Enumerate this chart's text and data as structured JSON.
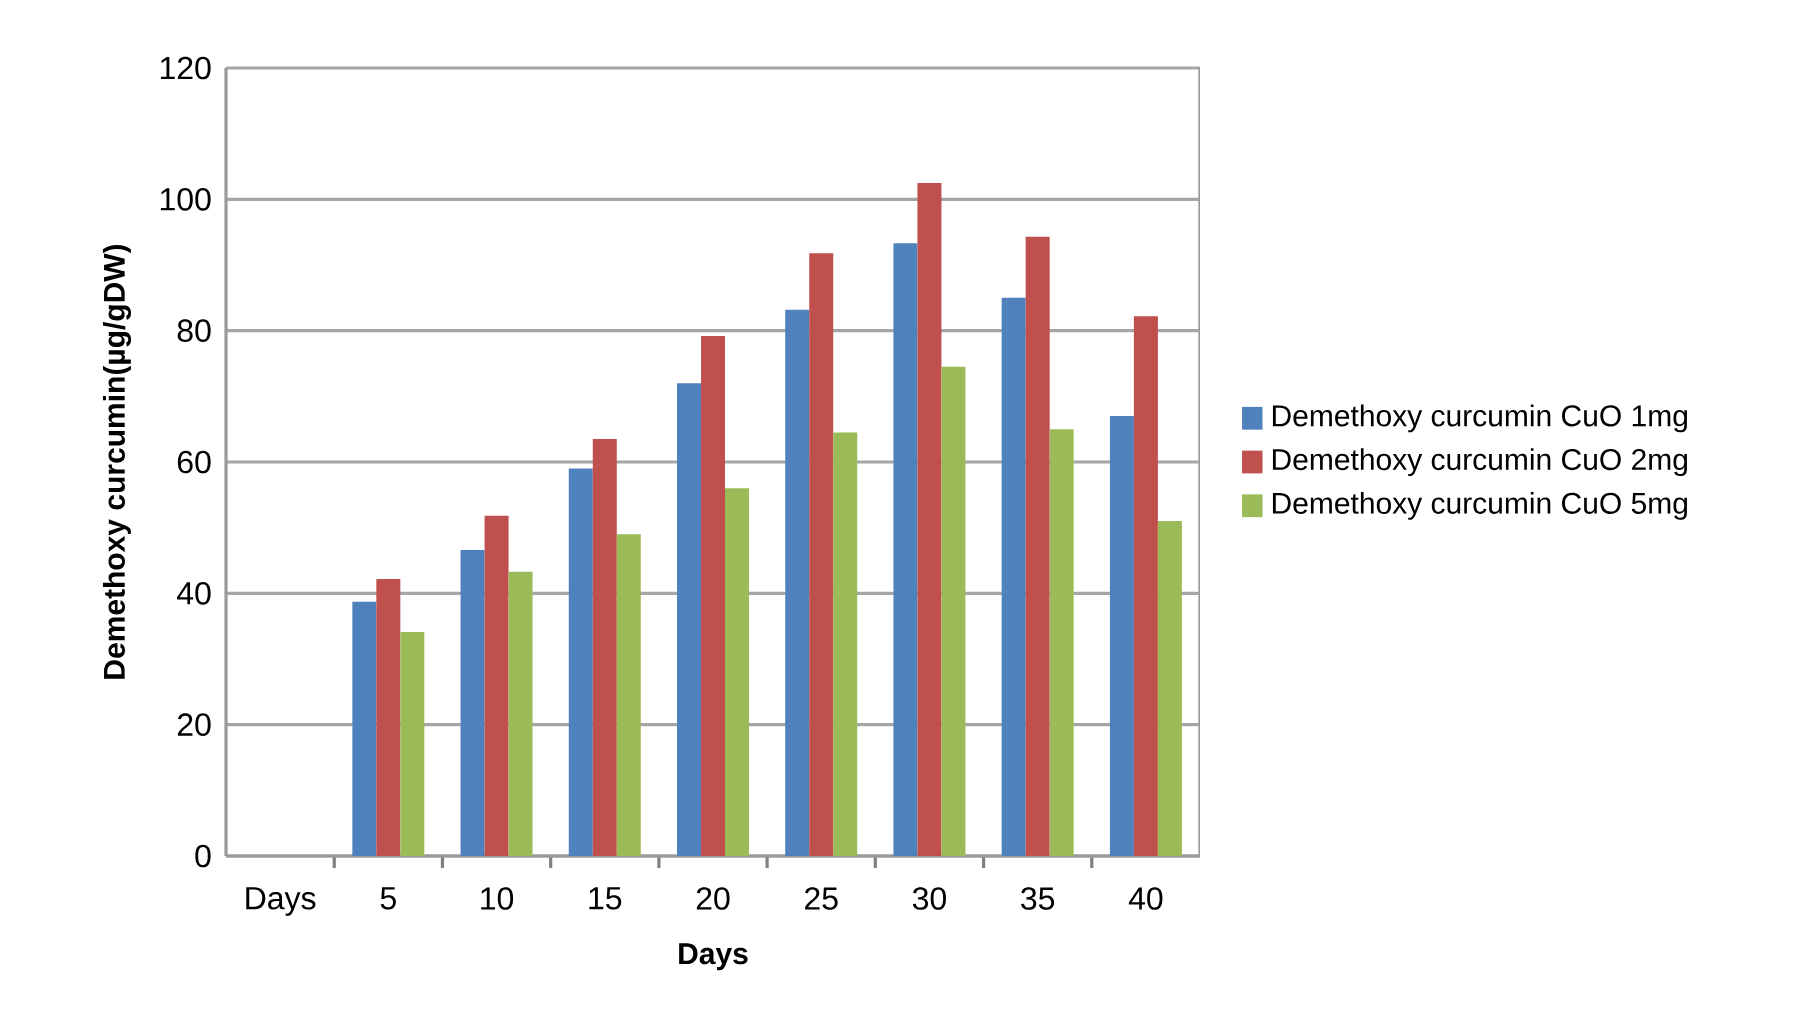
{
  "chart_data": {
    "type": "bar",
    "xlabel": "Days",
    "ylabel": "Demethoxy curcumin(µg/gDW)",
    "categories": [
      "Days",
      "5",
      "10",
      "15",
      "20",
      "25",
      "30",
      "35",
      "40"
    ],
    "series": [
      {
        "name": "Demethoxy curcumin CuO 1mg",
        "color": "#4f81bd",
        "values": [
          null,
          38.7,
          46.6,
          59,
          72,
          83.2,
          93.3,
          85,
          67
        ]
      },
      {
        "name": "Demethoxy curcumin CuO 2mg",
        "color": "#c0504d",
        "values": [
          null,
          42.2,
          51.8,
          63.5,
          79.2,
          91.8,
          102.5,
          94.3,
          82.2
        ]
      },
      {
        "name": "Demethoxy curcumin CuO 5mg",
        "color": "#9bbb59",
        "values": [
          null,
          34.1,
          43.3,
          49,
          56,
          64.5,
          74.5,
          65,
          51
        ]
      }
    ],
    "ylim": [
      0,
      120
    ],
    "yticks": [
      0,
      20,
      40,
      60,
      80,
      100,
      120
    ],
    "grid": "y",
    "legend": "right"
  }
}
